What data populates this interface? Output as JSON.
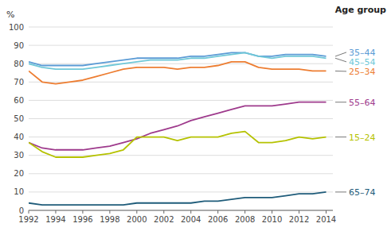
{
  "chart_data": {
    "type": "line",
    "legend_title": "Age group",
    "y_label": "%",
    "x": [
      1992,
      1993,
      1994,
      1995,
      1996,
      1997,
      1998,
      1999,
      2000,
      2001,
      2002,
      2003,
      2004,
      2005,
      2006,
      2007,
      2008,
      2009,
      2010,
      2011,
      2012,
      2013,
      2014
    ],
    "series": [
      {
        "name": "35–44",
        "color": "#5b9bd5",
        "values": [
          81,
          79,
          79,
          79,
          79,
          80,
          81,
          82,
          83,
          83,
          83,
          83,
          84,
          84,
          85,
          86,
          86,
          84,
          84,
          85,
          85,
          85,
          84
        ]
      },
      {
        "name": "45–54",
        "color": "#70c8d8",
        "values": [
          80,
          78,
          77,
          77,
          77,
          78,
          79,
          80,
          81,
          82,
          82,
          82,
          83,
          83,
          84,
          85,
          86,
          84,
          83,
          84,
          84,
          84,
          83
        ]
      },
      {
        "name": "25–34",
        "color": "#ed7d31",
        "values": [
          76,
          70,
          69,
          70,
          71,
          73,
          75,
          77,
          78,
          78,
          78,
          77,
          78,
          78,
          79,
          81,
          81,
          78,
          77,
          77,
          77,
          76,
          76
        ]
      },
      {
        "name": "55–64",
        "color": "#9e3a8c",
        "values": [
          37,
          34,
          33,
          33,
          33,
          34,
          35,
          37,
          39,
          42,
          44,
          46,
          49,
          51,
          53,
          55,
          57,
          57,
          57,
          58,
          59,
          59,
          59
        ]
      },
      {
        "name": "15–24",
        "color": "#b5c200",
        "values": [
          37,
          32,
          29,
          29,
          29,
          30,
          31,
          33,
          40,
          40,
          40,
          38,
          40,
          40,
          40,
          42,
          43,
          37,
          37,
          38,
          40,
          39,
          40
        ]
      },
      {
        "name": "65–74",
        "color": "#1f5c7a",
        "values": [
          4,
          3,
          3,
          3,
          3,
          3,
          3,
          3,
          4,
          4,
          4,
          4,
          4,
          5,
          5,
          6,
          7,
          7,
          7,
          8,
          9,
          9,
          10
        ]
      }
    ],
    "xlim": [
      1992,
      2014.5
    ],
    "xticks": [
      1992,
      1994,
      1996,
      1998,
      2000,
      2002,
      2004,
      2006,
      2008,
      2010,
      2012,
      2014
    ],
    "ylim": [
      0,
      100
    ],
    "yticks": [
      0,
      10,
      20,
      30,
      40,
      50,
      60,
      70,
      80,
      90,
      100
    ],
    "grid": true
  }
}
